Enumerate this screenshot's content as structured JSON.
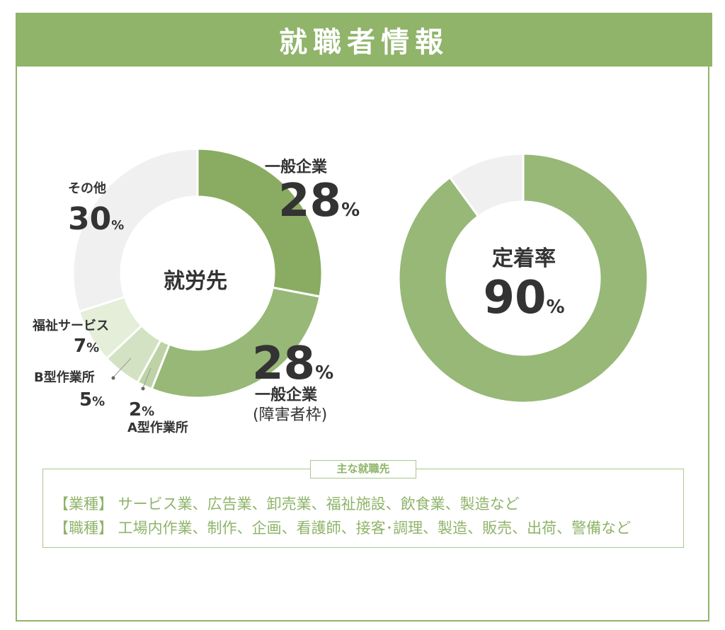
{
  "header": {
    "title": "就職者情報"
  },
  "chart_data": [
    {
      "type": "pie",
      "center_label": "就労先",
      "slices": [
        {
          "label": "一般企業",
          "value": 28,
          "color": "#8aac62"
        },
        {
          "label": "一般企業(障害者枠)",
          "value": 28,
          "color": "#97b877"
        },
        {
          "label": "A型作業所",
          "value": 2,
          "color": "#bdd3a5"
        },
        {
          "label": "B型作業所",
          "value": 5,
          "color": "#d3e2c3"
        },
        {
          "label": "福祉サービス",
          "value": 7,
          "color": "#e4eed9"
        },
        {
          "label": "その他",
          "value": 30,
          "color": "#f0f0f0"
        }
      ]
    },
    {
      "type": "pie",
      "center_label": "定着率",
      "center_value": "90",
      "slices": [
        {
          "label": "定着",
          "value": 90,
          "color": "#97b877"
        },
        {
          "label": "",
          "value": 10,
          "color": "#f0f0f0"
        }
      ]
    }
  ],
  "labels": {
    "general": {
      "name": "一般企業",
      "num": "28",
      "pct": "%"
    },
    "disability": {
      "num": "28",
      "pct": "%",
      "name": "一般企業",
      "sub": "(障害者枠)"
    },
    "typeA": {
      "num": "2",
      "pct": "%",
      "name": "A型作業所"
    },
    "typeB": {
      "name": "B型作業所",
      "num": "5",
      "pct": "%"
    },
    "welfare": {
      "name": "福祉サービス",
      "num": "7",
      "pct": "%"
    },
    "other": {
      "name": "その他",
      "num": "30",
      "pct": "%"
    },
    "retention_pct": "%"
  },
  "jobs": {
    "title": "主な就職先",
    "industry": "【業種】 サービス業、広告業、卸売業、福祉施設、飲食業、製造など",
    "occupation": "【職種】 工場内作業、制作、企画、看護師、接客･調理、製造、販売、出荷、警備など"
  }
}
